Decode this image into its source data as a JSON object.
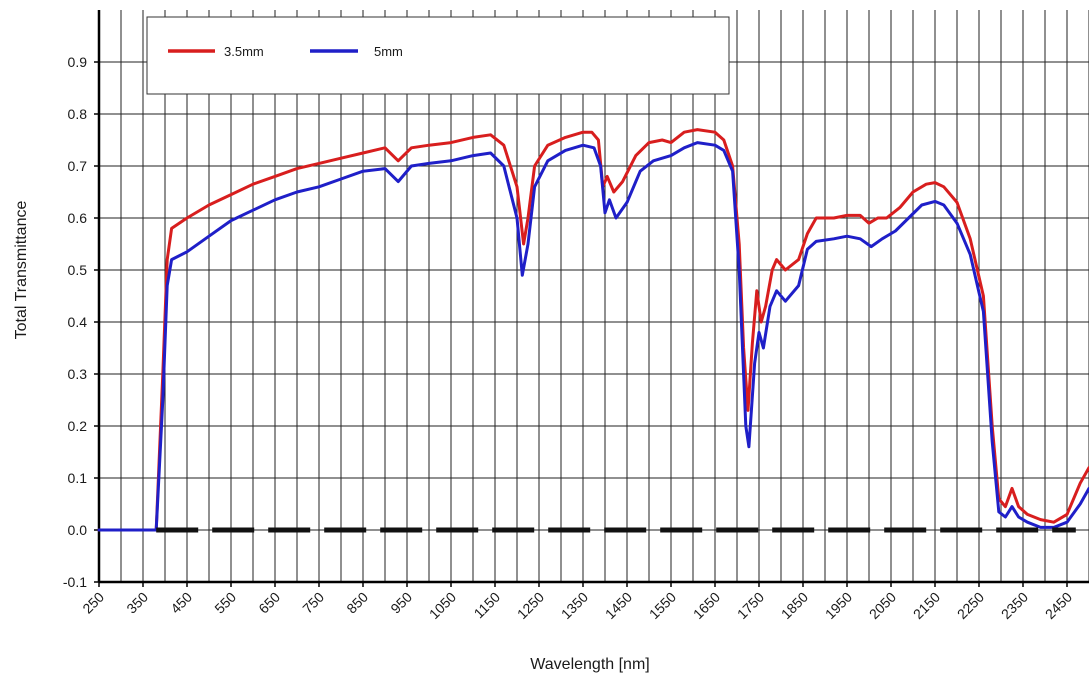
{
  "chart_data": {
    "type": "line",
    "xlabel": "Wavelength [nm]",
    "ylabel": "Total Transmittance",
    "xlim": [
      250,
      2500
    ],
    "ylim": [
      -0.1,
      1.0
    ],
    "x_ticks": [
      250,
      350,
      450,
      550,
      650,
      750,
      850,
      950,
      1050,
      1150,
      1250,
      1350,
      1450,
      1550,
      1650,
      1750,
      1850,
      1950,
      2050,
      2150,
      2250,
      2350,
      2450
    ],
    "x_tick_labels": [
      "250",
      "350",
      "450",
      "550",
      "650",
      "750",
      "850",
      "950",
      "1050",
      "1150",
      "1250",
      "1350",
      "1450",
      "1550",
      "1650",
      "1750",
      "1850",
      "1950",
      "2050",
      "2150",
      "2250",
      "2350",
      "2450"
    ],
    "y_ticks": [
      -0.1,
      0.0,
      0.1,
      0.2,
      0.3,
      0.4,
      0.5,
      0.6,
      0.7,
      0.8,
      0.9
    ],
    "y_tick_labels": [
      "-0.1",
      "0.0",
      "0.1",
      "0.2",
      "0.3",
      "0.4",
      "0.5",
      "0.6",
      "0.7",
      "0.8",
      "0.9"
    ],
    "grid": true,
    "legend_position": "top-left",
    "series": [
      {
        "name": "3.5mm",
        "color": "#d81e1e",
        "points": [
          [
            250,
            0
          ],
          [
            380,
            0
          ],
          [
            395,
            0.3
          ],
          [
            405,
            0.52
          ],
          [
            415,
            0.58
          ],
          [
            450,
            0.6
          ],
          [
            500,
            0.625
          ],
          [
            550,
            0.645
          ],
          [
            600,
            0.665
          ],
          [
            650,
            0.68
          ],
          [
            700,
            0.695
          ],
          [
            750,
            0.705
          ],
          [
            800,
            0.715
          ],
          [
            850,
            0.725
          ],
          [
            900,
            0.735
          ],
          [
            930,
            0.71
          ],
          [
            960,
            0.735
          ],
          [
            1000,
            0.74
          ],
          [
            1050,
            0.745
          ],
          [
            1100,
            0.755
          ],
          [
            1140,
            0.76
          ],
          [
            1170,
            0.74
          ],
          [
            1200,
            0.66
          ],
          [
            1215,
            0.55
          ],
          [
            1225,
            0.6
          ],
          [
            1240,
            0.7
          ],
          [
            1270,
            0.74
          ],
          [
            1310,
            0.755
          ],
          [
            1350,
            0.765
          ],
          [
            1370,
            0.765
          ],
          [
            1385,
            0.75
          ],
          [
            1395,
            0.66
          ],
          [
            1405,
            0.68
          ],
          [
            1420,
            0.65
          ],
          [
            1440,
            0.67
          ],
          [
            1470,
            0.72
          ],
          [
            1500,
            0.745
          ],
          [
            1530,
            0.75
          ],
          [
            1550,
            0.745
          ],
          [
            1580,
            0.765
          ],
          [
            1610,
            0.77
          ],
          [
            1650,
            0.765
          ],
          [
            1670,
            0.75
          ],
          [
            1690,
            0.7
          ],
          [
            1705,
            0.55
          ],
          [
            1715,
            0.35
          ],
          [
            1725,
            0.23
          ],
          [
            1735,
            0.36
          ],
          [
            1745,
            0.46
          ],
          [
            1755,
            0.4
          ],
          [
            1765,
            0.43
          ],
          [
            1780,
            0.5
          ],
          [
            1790,
            0.52
          ],
          [
            1810,
            0.5
          ],
          [
            1840,
            0.52
          ],
          [
            1860,
            0.57
          ],
          [
            1880,
            0.6
          ],
          [
            1920,
            0.6
          ],
          [
            1950,
            0.605
          ],
          [
            1980,
            0.605
          ],
          [
            2000,
            0.59
          ],
          [
            2020,
            0.6
          ],
          [
            2040,
            0.6
          ],
          [
            2070,
            0.62
          ],
          [
            2100,
            0.65
          ],
          [
            2130,
            0.665
          ],
          [
            2150,
            0.668
          ],
          [
            2170,
            0.66
          ],
          [
            2200,
            0.63
          ],
          [
            2230,
            0.56
          ],
          [
            2260,
            0.45
          ],
          [
            2280,
            0.2
          ],
          [
            2295,
            0.06
          ],
          [
            2310,
            0.045
          ],
          [
            2325,
            0.08
          ],
          [
            2340,
            0.045
          ],
          [
            2360,
            0.03
          ],
          [
            2390,
            0.02
          ],
          [
            2420,
            0.015
          ],
          [
            2450,
            0.03
          ],
          [
            2480,
            0.09
          ],
          [
            2500,
            0.12
          ]
        ]
      },
      {
        "name": "5mm",
        "color": "#1f1fc8",
        "points": [
          [
            250,
            0
          ],
          [
            380,
            0
          ],
          [
            395,
            0.25
          ],
          [
            405,
            0.47
          ],
          [
            415,
            0.52
          ],
          [
            450,
            0.535
          ],
          [
            500,
            0.565
          ],
          [
            550,
            0.595
          ],
          [
            600,
            0.615
          ],
          [
            650,
            0.635
          ],
          [
            700,
            0.65
          ],
          [
            750,
            0.66
          ],
          [
            800,
            0.675
          ],
          [
            850,
            0.69
          ],
          [
            900,
            0.695
          ],
          [
            930,
            0.67
          ],
          [
            960,
            0.7
          ],
          [
            1000,
            0.705
          ],
          [
            1050,
            0.71
          ],
          [
            1100,
            0.72
          ],
          [
            1140,
            0.725
          ],
          [
            1170,
            0.7
          ],
          [
            1200,
            0.6
          ],
          [
            1212,
            0.49
          ],
          [
            1225,
            0.55
          ],
          [
            1240,
            0.66
          ],
          [
            1270,
            0.71
          ],
          [
            1310,
            0.73
          ],
          [
            1350,
            0.74
          ],
          [
            1375,
            0.735
          ],
          [
            1390,
            0.7
          ],
          [
            1400,
            0.61
          ],
          [
            1410,
            0.635
          ],
          [
            1425,
            0.6
          ],
          [
            1450,
            0.63
          ],
          [
            1480,
            0.69
          ],
          [
            1510,
            0.71
          ],
          [
            1550,
            0.72
          ],
          [
            1580,
            0.735
          ],
          [
            1610,
            0.745
          ],
          [
            1650,
            0.74
          ],
          [
            1670,
            0.73
          ],
          [
            1690,
            0.69
          ],
          [
            1705,
            0.5
          ],
          [
            1720,
            0.2
          ],
          [
            1727,
            0.16
          ],
          [
            1740,
            0.32
          ],
          [
            1750,
            0.38
          ],
          [
            1760,
            0.35
          ],
          [
            1775,
            0.43
          ],
          [
            1790,
            0.46
          ],
          [
            1810,
            0.44
          ],
          [
            1840,
            0.47
          ],
          [
            1860,
            0.54
          ],
          [
            1880,
            0.555
          ],
          [
            1920,
            0.56
          ],
          [
            1950,
            0.565
          ],
          [
            1980,
            0.56
          ],
          [
            2005,
            0.545
          ],
          [
            2030,
            0.56
          ],
          [
            2060,
            0.575
          ],
          [
            2090,
            0.6
          ],
          [
            2120,
            0.625
          ],
          [
            2150,
            0.632
          ],
          [
            2170,
            0.625
          ],
          [
            2200,
            0.59
          ],
          [
            2230,
            0.53
          ],
          [
            2260,
            0.42
          ],
          [
            2280,
            0.17
          ],
          [
            2295,
            0.035
          ],
          [
            2310,
            0.025
          ],
          [
            2325,
            0.045
          ],
          [
            2340,
            0.025
          ],
          [
            2360,
            0.015
          ],
          [
            2390,
            0.005
          ],
          [
            2420,
            0.005
          ],
          [
            2450,
            0.015
          ],
          [
            2480,
            0.05
          ],
          [
            2500,
            0.08
          ]
        ]
      },
      {
        "name": "",
        "color": "#111111",
        "dashed": true,
        "points": [
          [
            380,
            0
          ],
          [
            2470,
            0
          ]
        ]
      }
    ]
  }
}
